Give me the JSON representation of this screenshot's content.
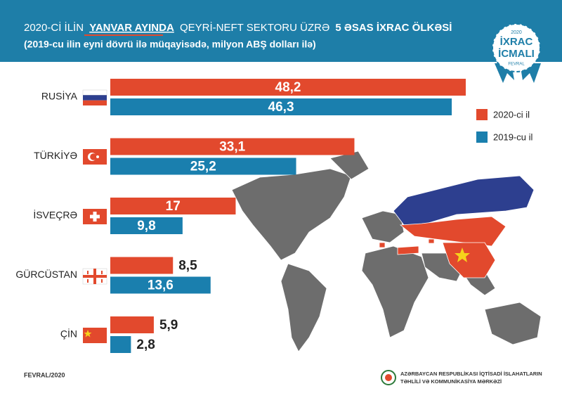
{
  "chart_data": {
    "type": "hbar",
    "title": [
      "2020-Cİ İLİN",
      "YANVAR AYINDA",
      "QEYRİ-NEFT SEKTORU ÜZRƏ",
      "5 ƏSAS İXRAC ÖLKƏSİ"
    ],
    "subtitle": "(2019-cu ilin eyni dövrü ilə müqayisədə, milyon ABŞ dolları ilə)",
    "categories": [
      "RUSİYA",
      "TÜRKİYƏ",
      "İSVEÇRƏ",
      "GÜRCÜSTAN",
      "ÇİN"
    ],
    "series": [
      {
        "name": "2020-ci il",
        "color": "#e2492d",
        "values": [
          48.2,
          33.1,
          17,
          8.5,
          5.9
        ],
        "value_labels": [
          "48,2",
          "33,1",
          "17",
          "8,5",
          "5,9"
        ]
      },
      {
        "name": "2019-cu il",
        "color": "#1a7fae",
        "values": [
          46.3,
          25.2,
          9.8,
          13.6,
          2.8
        ],
        "value_labels": [
          "46,3",
          "25,2",
          "9,8",
          "13,6",
          "2,8"
        ]
      }
    ]
  },
  "badge": {
    "year": "2020",
    "line1": "İXRAC",
    "line2": "İCMALI",
    "month": "FEVRAL"
  },
  "footer": {
    "date": "FEVRAL/2020",
    "org_line1": "AZƏRBAYCAN RESPUBLİKASI İQTİSADİ İSLAHATLARIN",
    "org_line2": "TƏHLİLİ VƏ KOMMUNİKASİYA MƏRKƏZİ"
  }
}
